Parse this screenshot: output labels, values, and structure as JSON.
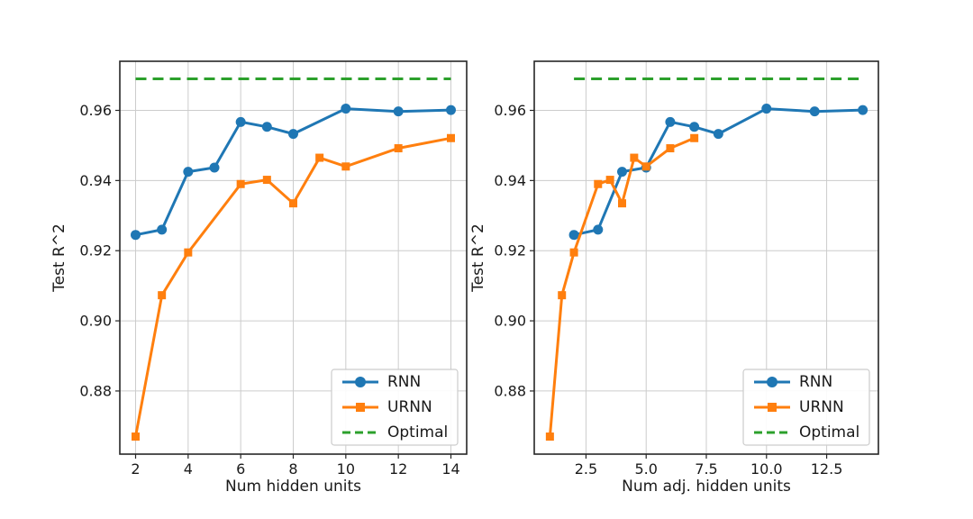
{
  "figure": {
    "background": "#ffffff",
    "text_color": "#1a1a1a",
    "grid_color": "#cccccc",
    "frame_color": "#262626",
    "legend_border_color": "#cccccc",
    "legend_background": "#ffffff"
  },
  "chart_data": [
    {
      "type": "line",
      "title": "",
      "xlabel": "Num hidden units",
      "ylabel": "Test R^2",
      "xlim": [
        1.4,
        14.6
      ],
      "ylim": [
        0.862,
        0.974
      ],
      "grid": true,
      "legend_position": "lower right",
      "xticks": {
        "values": [
          2,
          4,
          6,
          8,
          10,
          12,
          14
        ],
        "labels": [
          "2",
          "4",
          "6",
          "8",
          "10",
          "12",
          "14"
        ]
      },
      "yticks": {
        "values": [
          0.88,
          0.9,
          0.92,
          0.94,
          0.96
        ],
        "labels": [
          "0.88",
          "0.90",
          "0.92",
          "0.94",
          "0.96"
        ]
      },
      "series": [
        {
          "name": "RNN",
          "color": "#1f77b4",
          "marker": "circle",
          "line": "solid",
          "x": [
            2,
            3,
            4,
            5,
            6,
            7,
            8,
            10,
            12,
            14
          ],
          "y": [
            0.9245,
            0.926,
            0.9425,
            0.9437,
            0.9567,
            0.9553,
            0.9533,
            0.9605,
            0.9597,
            0.9601
          ]
        },
        {
          "name": "URNN",
          "color": "#ff7f0e",
          "marker": "square",
          "line": "solid",
          "x": [
            2,
            3,
            4,
            6,
            7,
            8,
            9,
            10,
            12,
            14
          ],
          "y": [
            0.867,
            0.9073,
            0.9195,
            0.939,
            0.9402,
            0.9335,
            0.9465,
            0.944,
            0.9492,
            0.9521
          ]
        },
        {
          "name": "Optimal",
          "color": "#2ca02c",
          "marker": "none",
          "line": "dashed",
          "x": [
            2,
            14
          ],
          "y": [
            0.969,
            0.969
          ]
        }
      ]
    },
    {
      "type": "line",
      "title": "",
      "xlabel": "Num adj. hidden units",
      "ylabel": "Test R^2",
      "xlim": [
        0.35,
        14.65
      ],
      "ylim": [
        0.862,
        0.974
      ],
      "grid": true,
      "legend_position": "lower right",
      "xticks": {
        "values": [
          2.5,
          5.0,
          7.5,
          10.0,
          12.5
        ],
        "labels": [
          "2.5",
          "5.0",
          "7.5",
          "10.0",
          "12.5"
        ]
      },
      "yticks": {
        "values": [
          0.88,
          0.9,
          0.92,
          0.94,
          0.96
        ],
        "labels": [
          "0.88",
          "0.90",
          "0.92",
          "0.94",
          "0.96"
        ]
      },
      "series": [
        {
          "name": "RNN",
          "color": "#1f77b4",
          "marker": "circle",
          "line": "solid",
          "x": [
            2,
            3,
            4,
            5,
            6,
            7,
            8,
            10,
            12,
            14
          ],
          "y": [
            0.9245,
            0.926,
            0.9425,
            0.9437,
            0.9567,
            0.9553,
            0.9533,
            0.9605,
            0.9597,
            0.9601
          ]
        },
        {
          "name": "URNN",
          "color": "#ff7f0e",
          "marker": "square",
          "line": "solid",
          "x": [
            1,
            1.5,
            2,
            3,
            3.5,
            4,
            4.5,
            5,
            6,
            7
          ],
          "y": [
            0.867,
            0.9073,
            0.9195,
            0.939,
            0.9402,
            0.9335,
            0.9465,
            0.944,
            0.9492,
            0.9521
          ]
        },
        {
          "name": "Optimal",
          "color": "#2ca02c",
          "marker": "none",
          "line": "dashed",
          "x": [
            2,
            14
          ],
          "y": [
            0.969,
            0.969
          ]
        }
      ]
    }
  ],
  "legend": {
    "entries": [
      "RNN",
      "URNN",
      "Optimal"
    ]
  }
}
